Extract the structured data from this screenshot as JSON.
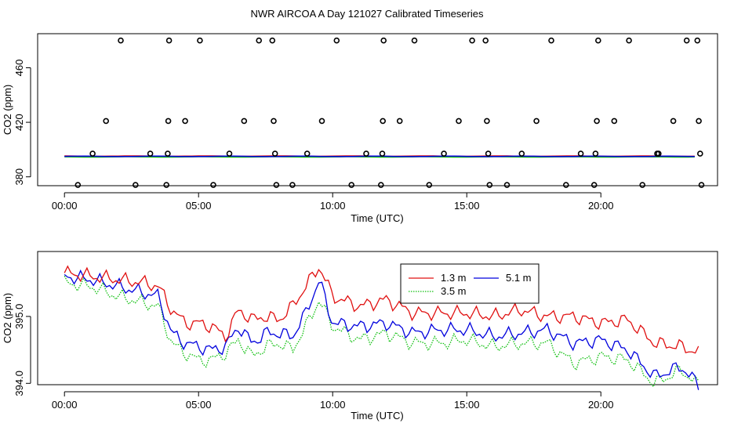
{
  "title": "NWR AIRCOA A  Day 121027  Calibrated Timeseries",
  "chart_data": [
    {
      "type": "scatter",
      "ylabel": "CO2 (ppm)",
      "xlabel": "Time (UTC)",
      "xlim": [
        -1.0,
        24.35
      ],
      "ylim": [
        373.5,
        485.0
      ],
      "xticks": [
        0,
        5,
        10,
        15,
        20
      ],
      "xtick_labels": [
        "00:00",
        "05:00",
        "10:00",
        "15:00",
        "20:00"
      ],
      "yticks": [
        380,
        420,
        460
      ],
      "ytick_labels": [
        "380",
        "420",
        "460"
      ],
      "colors": {
        "r": "#e01010",
        "g": "#10c010",
        "b": "#0000dd"
      },
      "points": [
        [
          0.5,
          374
        ],
        [
          1.05,
          397
        ],
        [
          1.55,
          421
        ],
        [
          2.1,
          480
        ],
        [
          2.65,
          374
        ],
        [
          3.2,
          397
        ],
        [
          3.8,
          374
        ],
        [
          3.85,
          397
        ],
        [
          3.87,
          421
        ],
        [
          3.9,
          480
        ],
        [
          4.5,
          421
        ],
        [
          5.05,
          480
        ],
        [
          5.55,
          374
        ],
        [
          6.15,
          397
        ],
        [
          6.7,
          421
        ],
        [
          7.25,
          480
        ],
        [
          7.75,
          480
        ],
        [
          7.8,
          421
        ],
        [
          7.85,
          397
        ],
        [
          7.9,
          374
        ],
        [
          8.5,
          374
        ],
        [
          9.05,
          397
        ],
        [
          9.6,
          421
        ],
        [
          10.15,
          480
        ],
        [
          10.7,
          374
        ],
        [
          11.25,
          397
        ],
        [
          11.8,
          374
        ],
        [
          11.85,
          397
        ],
        [
          11.87,
          421
        ],
        [
          11.9,
          480
        ],
        [
          12.5,
          421
        ],
        [
          13.05,
          480
        ],
        [
          13.6,
          374
        ],
        [
          14.15,
          397
        ],
        [
          14.7,
          421
        ],
        [
          15.2,
          480
        ],
        [
          15.7,
          480
        ],
        [
          15.75,
          421
        ],
        [
          15.8,
          397
        ],
        [
          15.85,
          374
        ],
        [
          16.5,
          374
        ],
        [
          17.05,
          397
        ],
        [
          17.6,
          421
        ],
        [
          18.15,
          480
        ],
        [
          18.7,
          374
        ],
        [
          19.25,
          397
        ],
        [
          19.75,
          374
        ],
        [
          19.8,
          397
        ],
        [
          19.85,
          421
        ],
        [
          19.9,
          480
        ],
        [
          20.5,
          421
        ],
        [
          21.05,
          480
        ],
        [
          21.55,
          374
        ],
        [
          22.1,
          397
        ],
        [
          22.15,
          397
        ],
        [
          22.7,
          421
        ],
        [
          23.2,
          480
        ],
        [
          23.6,
          480
        ],
        [
          23.65,
          421
        ],
        [
          23.7,
          397
        ],
        [
          23.75,
          374
        ]
      ],
      "series_note": "flat lines near 395"
    },
    {
      "type": "line",
      "ylabel": "CO2 (ppm)",
      "xlabel": "Time (UTC)",
      "xlim": [
        -1.0,
        24.35
      ],
      "ylim": [
        393.98,
        395.97
      ],
      "xticks": [
        0,
        5,
        10,
        15,
        20
      ],
      "xtick_labels": [
        "00:00",
        "05:00",
        "10:00",
        "15:00",
        "20:00"
      ],
      "yticks": [
        394.0,
        395.0
      ],
      "ytick_labels": [
        "394.0",
        "395.0"
      ],
      "legend": {
        "entries": [
          {
            "label": "1.3 m",
            "color": "#e01010",
            "style": "solid"
          },
          {
            "label": "5.1 m",
            "color": "#0000dd",
            "style": "solid"
          },
          {
            "label": "3.5 m",
            "color": "#10c010",
            "style": "dotted"
          }
        ]
      },
      "x": [
        0.0,
        1.0,
        2.0,
        3.0,
        3.5,
        4.0,
        4.5,
        5.0,
        5.5,
        6.0,
        6.5,
        7.0,
        7.5,
        8.0,
        8.5,
        9.0,
        9.5,
        10.0,
        11.0,
        12.0,
        13.0,
        14.0,
        15.0,
        16.0,
        17.0,
        18.0,
        19.0,
        20.0,
        21.0,
        22.0,
        23.0,
        23.7
      ],
      "series": [
        {
          "name": "1.3 m",
          "color": "#e01010",
          "values": [
            395.65,
            395.6,
            395.55,
            395.5,
            395.45,
            395.1,
            394.9,
            394.9,
            394.85,
            394.7,
            395.1,
            394.95,
            395.0,
            394.95,
            395.15,
            395.45,
            395.75,
            395.3,
            395.15,
            395.25,
            395.05,
            395.05,
            395.05,
            395.0,
            395.1,
            395.0,
            395.0,
            394.9,
            394.95,
            394.6,
            394.55,
            394.45
          ]
        },
        {
          "name": "3.5 m",
          "color": "#10c010",
          "values": [
            395.5,
            395.45,
            395.3,
            395.2,
            395.15,
            394.6,
            394.45,
            394.35,
            394.35,
            394.45,
            394.65,
            394.4,
            394.55,
            394.6,
            394.5,
            394.85,
            395.25,
            394.85,
            394.65,
            394.75,
            394.6,
            394.6,
            394.65,
            394.55,
            394.6,
            394.6,
            394.3,
            394.4,
            394.35,
            394.0,
            394.2,
            393.95
          ]
        },
        {
          "name": "5.1 m",
          "color": "#0000dd",
          "values": [
            395.6,
            395.55,
            395.45,
            395.35,
            395.3,
            394.75,
            394.6,
            394.55,
            394.5,
            394.55,
            394.85,
            394.6,
            394.75,
            394.75,
            394.7,
            395.05,
            395.55,
            394.9,
            394.85,
            394.9,
            394.75,
            394.8,
            394.8,
            394.7,
            394.75,
            394.8,
            394.6,
            394.65,
            394.5,
            394.1,
            394.25,
            393.95
          ]
        }
      ]
    }
  ]
}
